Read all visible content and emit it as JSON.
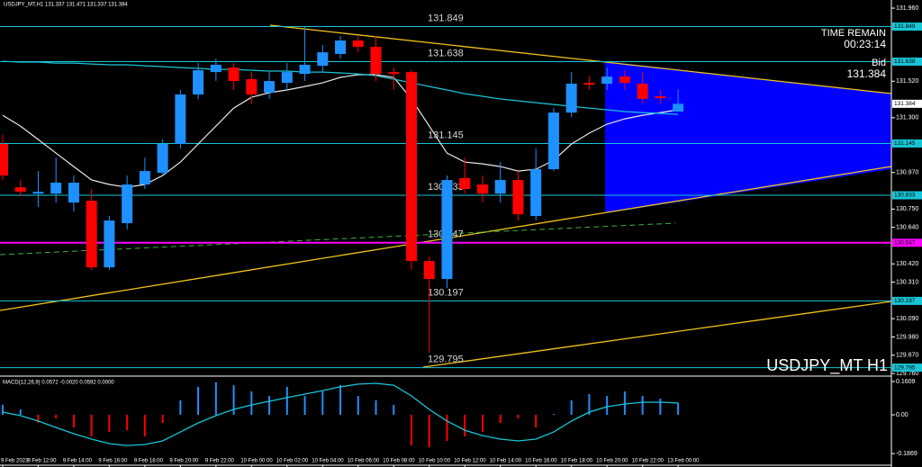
{
  "header": "USDJPY_MT,H1 131.337 131.471 131.337 131.384",
  "time_remain_label": "TIME REMAIN",
  "time_remain": "00:23:14",
  "bid_label": "Bid",
  "bid": 131.384,
  "watermark": "USDJPY_MT H1",
  "chart_data": [
    {
      "type": "candlestick",
      "up_color": "#1e90ff",
      "down_color": "#ff0000",
      "open": [
        131.142,
        130.881,
        130.843,
        130.843,
        130.789,
        130.8,
        130.399,
        130.665,
        130.898,
        130.968,
        131.142,
        131.44,
        131.575,
        131.602,
        131.532,
        131.451,
        131.51,
        131.564,
        131.613,
        131.684,
        131.765,
        131.727,
        131.575,
        131.575,
        130.437,
        130.329,
        130.936,
        130.898,
        130.843,
        130.925,
        130.708,
        130.99,
        131.331,
        131.51,
        131.505,
        131.548,
        131.505,
        131.429,
        131.337
      ],
      "high": [
        131.196,
        130.925,
        130.979,
        131.06,
        130.952,
        130.871,
        130.708,
        130.952,
        131.06,
        131.169,
        131.467,
        131.629,
        131.656,
        131.629,
        131.575,
        131.575,
        131.629,
        131.846,
        131.738,
        131.792,
        131.792,
        131.792,
        131.602,
        131.586,
        130.464,
        130.952,
        131.06,
        130.952,
        131.033,
        130.979,
        131.114,
        131.358,
        131.575,
        131.548,
        131.602,
        131.586,
        131.575,
        131.467,
        131.471
      ],
      "low": [
        130.925,
        130.827,
        130.762,
        130.789,
        130.735,
        130.383,
        130.383,
        130.627,
        130.871,
        130.952,
        131.114,
        131.413,
        131.521,
        131.467,
        131.385,
        131.413,
        131.467,
        131.521,
        131.575,
        131.656,
        131.694,
        131.521,
        131.467,
        130.383,
        129.884,
        130.274,
        130.843,
        130.789,
        130.789,
        130.681,
        130.681,
        130.979,
        131.304,
        131.467,
        131.467,
        131.467,
        131.385,
        131.385,
        131.337
      ],
      "close": [
        130.952,
        130.854,
        130.854,
        130.909,
        130.909,
        130.399,
        130.681,
        130.898,
        130.979,
        131.142,
        131.44,
        131.586,
        131.619,
        131.521,
        131.44,
        131.521,
        131.575,
        131.619,
        131.694,
        131.765,
        131.727,
        131.564,
        131.564,
        130.437,
        130.329,
        130.925,
        130.871,
        130.843,
        130.925,
        130.719,
        130.99,
        131.331,
        131.505,
        131.499,
        131.548,
        131.51,
        131.413,
        131.418,
        131.384
      ],
      "lines": [
        {
          "color": "#e8e8e8",
          "values": [
            131.315,
            131.25,
            131.169,
            131.087,
            131.006,
            130.925,
            130.898,
            130.881,
            130.898,
            130.952,
            131.033,
            131.142,
            131.25,
            131.358,
            131.423,
            131.451,
            131.467,
            131.488,
            131.51,
            131.543,
            131.559,
            131.559,
            131.543,
            131.413,
            131.25,
            131.087,
            131.033,
            131.022,
            131.006,
            130.979,
            130.99,
            131.044,
            131.142,
            131.207,
            131.261,
            131.293,
            131.315,
            131.331,
            131.348
          ]
        },
        {
          "color": "#19c5d6",
          "values": [
            131.64,
            131.635,
            131.635,
            131.629,
            131.629,
            131.624,
            131.619,
            131.619,
            131.613,
            131.608,
            131.602,
            131.597,
            131.591,
            131.591,
            131.586,
            131.581,
            131.581,
            131.575,
            131.575,
            131.57,
            131.564,
            131.553,
            131.532,
            131.51,
            131.488,
            131.467,
            131.445,
            131.429,
            131.413,
            131.402,
            131.391,
            131.38,
            131.369,
            131.358,
            131.348,
            131.337,
            131.331,
            131.326,
            131.32
          ]
        }
      ],
      "levels": [
        131.849,
        131.638,
        131.145,
        130.833,
        130.547,
        130.197,
        129.795
      ],
      "level_colors": [
        "#19c5d6",
        "#19c5d6",
        "#19c5d6",
        "#19c5d6",
        "#ff00ff",
        "#19c5d6",
        "#19c5d6"
      ],
      "xlim": [
        -0.15,
        50
      ],
      "ylim": [
        129.744,
        132.009
      ],
      "yticks": [
        {
          "value": 131.96,
          "label": "131.960"
        },
        {
          "value": 131.52,
          "label": "131.520"
        },
        {
          "value": 131.3,
          "label": "131.300"
        },
        {
          "value": 130.97,
          "label": "130.970"
        },
        {
          "value": 130.75,
          "label": "130.750"
        },
        {
          "value": 130.64,
          "label": "130.640"
        },
        {
          "value": 130.42,
          "label": "130.420"
        },
        {
          "value": 130.31,
          "label": "130.310"
        },
        {
          "value": 130.09,
          "label": "130.090"
        },
        {
          "value": 129.98,
          "label": "129.980"
        },
        {
          "value": 129.87,
          "label": "129.870"
        },
        {
          "value": 129.76,
          "label": "129.760"
        }
      ],
      "xticks": [
        {
          "value": 0,
          "label": "9 Feb 2023"
        },
        {
          "value": 2,
          "label": "9 Feb 12:00"
        },
        {
          "value": 4,
          "label": "9 Feb 14:00"
        },
        {
          "value": 6,
          "label": "9 Feb 16:00"
        },
        {
          "value": 8,
          "label": "9 Feb 18:00"
        },
        {
          "value": 10,
          "label": "9 Feb 20:00"
        },
        {
          "value": 12,
          "label": "9 Feb 22:00"
        },
        {
          "value": 14,
          "label": "10 Feb 00:00"
        },
        {
          "value": 16,
          "label": "10 Feb 02:00"
        },
        {
          "value": 18,
          "label": "10 Feb 04:00"
        },
        {
          "value": 20,
          "label": "10 Feb 06:00"
        },
        {
          "value": 22,
          "label": "10 Feb 08:00"
        },
        {
          "value": 24,
          "label": "10 Feb 10:00"
        },
        {
          "value": 26,
          "label": "10 Feb 12:00"
        },
        {
          "value": 28,
          "label": "10 Feb 14:00"
        },
        {
          "value": 30,
          "label": "10 Feb 16:00"
        },
        {
          "value": 32,
          "label": "10 Feb 18:00"
        },
        {
          "value": 34,
          "label": "10 Feb 20:00"
        },
        {
          "value": 36,
          "label": "10 Feb 22:00"
        },
        {
          "value": 38,
          "label": "13 Feb 00:00"
        }
      ]
    },
    {
      "type": "macd",
      "title": "MACD(12,26,9) 0.0572 -0.0020 0.0592 0.0000",
      "up_color": "#1e90ff",
      "down_color": "#ff0000",
      "line_color": "#19c5d6",
      "histogram": [
        0.048,
        0.026,
        -0.039,
        -0.017,
        -0.061,
        -0.104,
        -0.083,
        -0.074,
        -0.104,
        -0.039,
        0.07,
        0.135,
        0.157,
        0.143,
        0.113,
        0.091,
        0.135,
        0.091,
        0.113,
        0.143,
        0.091,
        0.07,
        0.048,
        -0.148,
        -0.157,
        -0.126,
        -0.104,
        -0.083,
        -0.039,
        -0.017,
        -0.061,
        0.004,
        0.07,
        0.1,
        0.091,
        0.113,
        0.091,
        0.078,
        0.057
      ],
      "signal": [
        0.013,
        -0.004,
        -0.03,
        -0.061,
        -0.091,
        -0.117,
        -0.139,
        -0.148,
        -0.143,
        -0.126,
        -0.083,
        -0.039,
        -0.004,
        0.026,
        0.048,
        0.065,
        0.083,
        0.1,
        0.117,
        0.135,
        0.148,
        0.152,
        0.143,
        0.091,
        0.026,
        -0.03,
        -0.074,
        -0.1,
        -0.117,
        -0.126,
        -0.117,
        -0.083,
        -0.03,
        0.013,
        0.039,
        0.052,
        0.061,
        0.061,
        0.057
      ],
      "ylim": [
        -0.243,
        0.178
      ],
      "yticks": [
        0.1609,
        {
          "value": 0,
          "label": "0.00"
        },
        -0.1869
      ]
    }
  ]
}
